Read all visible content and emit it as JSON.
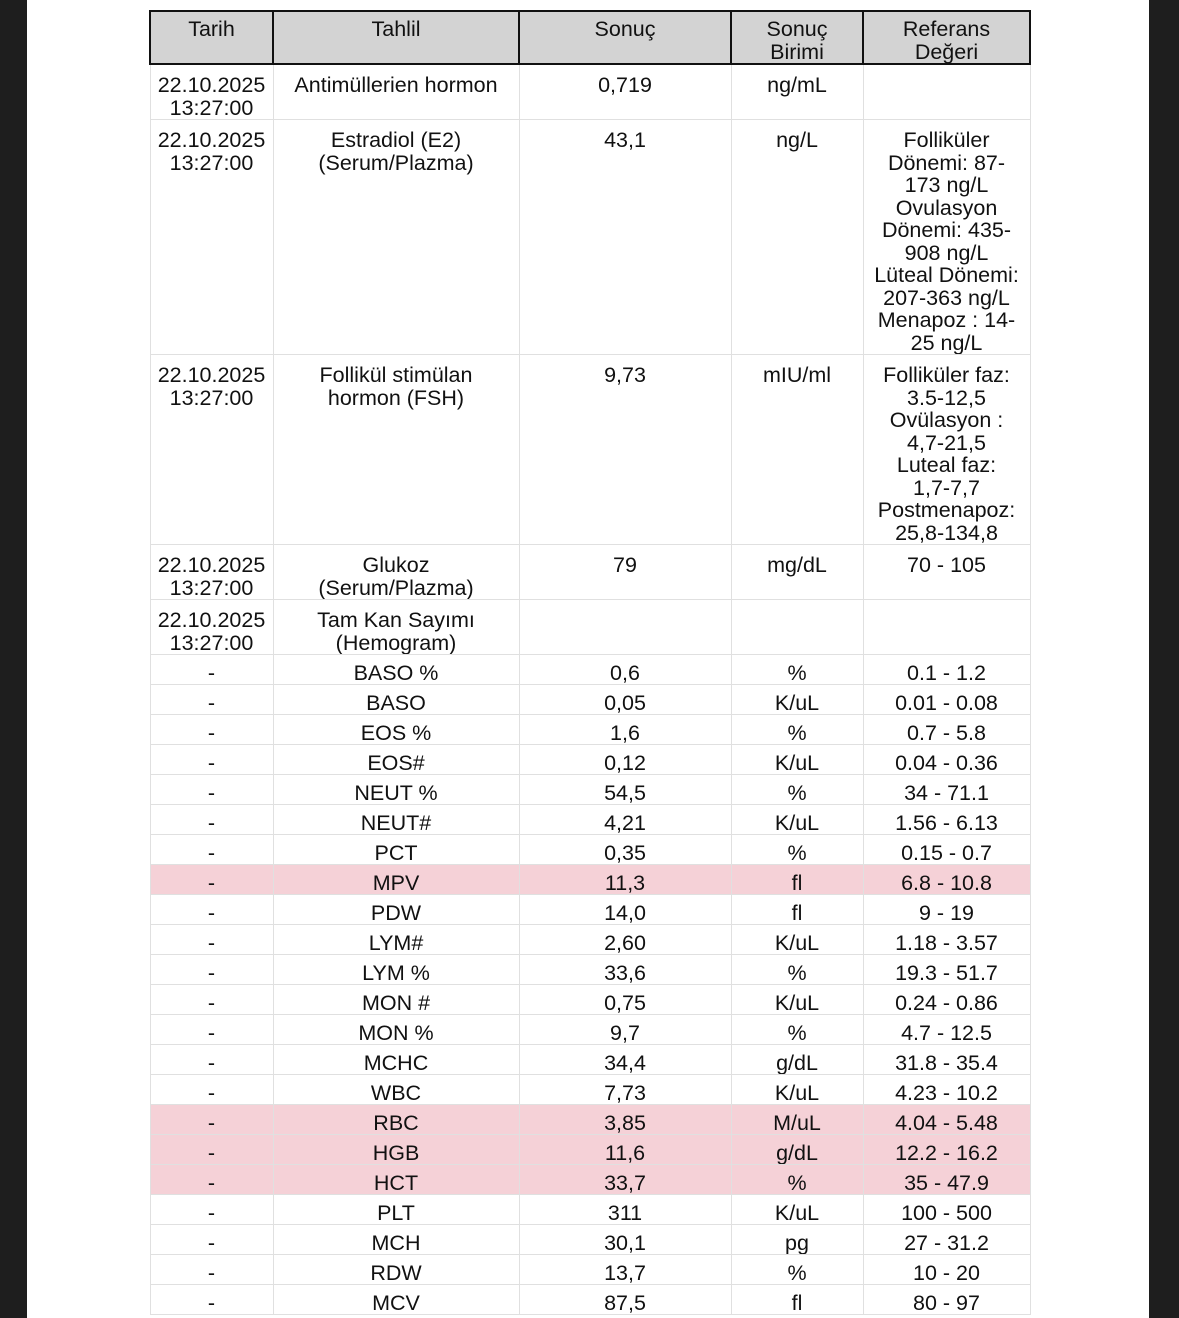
{
  "headers": [
    "Tarih",
    "Tahlil",
    "Sonuç",
    "Sonuç\nBirimi",
    "Referans\nDeğeri"
  ],
  "highlight_color": "#f5d1d7",
  "rows": [
    {
      "date": "22.10.2025\n13:27:00",
      "test": "Antimüllerien hormon",
      "result": "0,719",
      "unit": "ng/mL",
      "ref": "",
      "h": 55,
      "flag": false
    },
    {
      "date": "22.10.2025\n13:27:00",
      "test": "Estradiol (E2)\n(Serum/Plazma)",
      "result": "43,1",
      "unit": "ng/L",
      "ref": "Folliküler\nDönemi: 87-\n173  ng/L\nOvulasyon\nDönemi: 435-\n908  ng/L\nLüteal Dönemi:\n207-363 ng/L\nMenapoz : 14-\n25  ng/L",
      "h": 233,
      "flag": false
    },
    {
      "date": "22.10.2025\n13:27:00",
      "test": "Follikül stimülan\nhormon (FSH)",
      "result": "9,73",
      "unit": "mIU/ml",
      "ref": "Folliküler faz:\n3.5-12,5\nOvülasyon  :\n4,7-21,5\nLuteal faz:\n1,7-7,7\nPostmenapoz:\n25,8-134,8",
      "h": 188,
      "flag": false
    },
    {
      "date": "22.10.2025\n13:27:00",
      "test": "Glukoz\n(Serum/Plazma)",
      "result": "79",
      "unit": "mg/dL",
      "ref": "70 - 105",
      "h": 52,
      "flag": false
    },
    {
      "date": "22.10.2025\n13:27:00",
      "test": "Tam Kan Sayımı\n(Hemogram)",
      "result": "",
      "unit": "",
      "ref": "",
      "h": 53,
      "flag": false
    },
    {
      "date": "-",
      "test": "BASO %",
      "result": "0,6",
      "unit": "%",
      "ref": "0.1 - 1.2",
      "flag": false
    },
    {
      "date": "-",
      "test": "BASO",
      "result": "0,05",
      "unit": "K/uL",
      "ref": "0.01 - 0.08",
      "flag": false
    },
    {
      "date": "-",
      "test": "EOS %",
      "result": "1,6",
      "unit": "%",
      "ref": "0.7 - 5.8",
      "flag": false
    },
    {
      "date": "-",
      "test": "EOS#",
      "result": "0,12",
      "unit": "K/uL",
      "ref": "0.04 - 0.36",
      "flag": false
    },
    {
      "date": "-",
      "test": "NEUT %",
      "result": "54,5",
      "unit": "%",
      "ref": "34 - 71.1",
      "flag": false
    },
    {
      "date": "-",
      "test": "NEUT#",
      "result": "4,21",
      "unit": "K/uL",
      "ref": "1.56 - 6.13",
      "flag": false
    },
    {
      "date": "-",
      "test": "PCT",
      "result": "0,35",
      "unit": "%",
      "ref": "0.15 - 0.7",
      "flag": false
    },
    {
      "date": "-",
      "test": "MPV",
      "result": "11,3",
      "unit": "fl",
      "ref": "6.8 - 10.8",
      "flag": true
    },
    {
      "date": "-",
      "test": "PDW",
      "result": "14,0",
      "unit": "fl",
      "ref": "9 - 19",
      "flag": false
    },
    {
      "date": "-",
      "test": "LYM#",
      "result": "2,60",
      "unit": "K/uL",
      "ref": "1.18 - 3.57",
      "flag": false
    },
    {
      "date": "-",
      "test": "LYM %",
      "result": "33,6",
      "unit": "%",
      "ref": "19.3 - 51.7",
      "flag": false
    },
    {
      "date": "-",
      "test": "MON #",
      "result": "0,75",
      "unit": "K/uL",
      "ref": "0.24 - 0.86",
      "flag": false
    },
    {
      "date": "-",
      "test": "MON %",
      "result": "9,7",
      "unit": "%",
      "ref": "4.7 - 12.5",
      "flag": false
    },
    {
      "date": "-",
      "test": "MCHC",
      "result": "34,4",
      "unit": "g/dL",
      "ref": "31.8 - 35.4",
      "flag": false
    },
    {
      "date": "-",
      "test": "WBC",
      "result": "7,73",
      "unit": "K/uL",
      "ref": "4.23 - 10.2",
      "flag": false
    },
    {
      "date": "-",
      "test": "RBC",
      "result": "3,85",
      "unit": "M/uL",
      "ref": "4.04 - 5.48",
      "flag": true
    },
    {
      "date": "-",
      "test": "HGB",
      "result": "11,6",
      "unit": "g/dL",
      "ref": "12.2 - 16.2",
      "flag": true
    },
    {
      "date": "-",
      "test": "HCT",
      "result": "33,7",
      "unit": "%",
      "ref": "35 - 47.9",
      "flag": true
    },
    {
      "date": "-",
      "test": "PLT",
      "result": "311",
      "unit": "K/uL",
      "ref": "100 - 500",
      "flag": false
    },
    {
      "date": "-",
      "test": "MCH",
      "result": "30,1",
      "unit": "pg",
      "ref": "27 - 31.2",
      "flag": false
    },
    {
      "date": "-",
      "test": "RDW",
      "result": "13,7",
      "unit": "%",
      "ref": "10 - 20",
      "flag": false
    },
    {
      "date": "-",
      "test": "MCV",
      "result": "87,5",
      "unit": "fl",
      "ref": "80 - 97",
      "flag": false
    }
  ]
}
